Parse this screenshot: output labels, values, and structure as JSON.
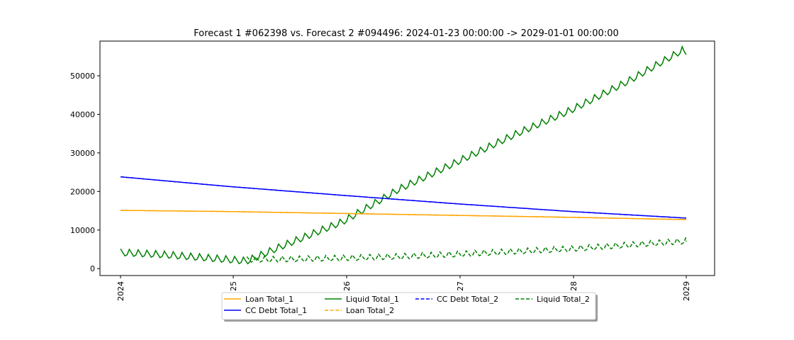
{
  "chart_data": {
    "type": "line",
    "title": "Forecast 1 #062398 vs. Forecast 2 #094496: 2024-01-23 00:00:00 -> 2029-01-01 00:00:00",
    "xlabel": "",
    "ylabel": "",
    "x_ticks": [
      "2024",
      "25",
      "26",
      "27",
      "28",
      "2029"
    ],
    "x_range": [
      "2024-01-23",
      "2029-01-01"
    ],
    "ylim": [
      -1800,
      59000
    ],
    "y_ticks": [
      0,
      10000,
      20000,
      30000,
      40000,
      50000
    ],
    "grid": false,
    "legend_position": "bottom-center",
    "series": [
      {
        "name": "Loan Total_1",
        "color": "#ffa500",
        "style": "solid",
        "x": [
          "2024-01-23",
          "2025-01-01",
          "2026-01-01",
          "2027-01-01",
          "2028-01-01",
          "2029-01-01"
        ],
        "values": [
          15100,
          14800,
          14300,
          13800,
          13300,
          12700
        ]
      },
      {
        "name": "CC Debt Total_1",
        "color": "#0000ff",
        "style": "solid",
        "x": [
          "2024-01-23",
          "2025-01-01",
          "2026-01-01",
          "2027-01-01",
          "2028-01-01",
          "2029-01-01"
        ],
        "values": [
          23800,
          21300,
          19000,
          16800,
          14800,
          13100
        ]
      },
      {
        "name": "Liquid Total_1",
        "color": "#008000",
        "style": "solid",
        "x": [
          "2024-01-23",
          "2024-06-01",
          "2025-01-01",
          "2025-03-01",
          "2025-07-01",
          "2026-01-01",
          "2026-07-01",
          "2027-01-01",
          "2027-07-01",
          "2028-01-01",
          "2028-07-01",
          "2028-12-20",
          "2029-01-01"
        ],
        "values": [
          4000,
          3500,
          2200,
          1800,
          6000,
          12000,
          20500,
          27500,
          34500,
          41000,
          48500,
          56500,
          55500
        ]
      },
      {
        "name": "Loan Total_2",
        "color": "#ffa500",
        "style": "dashed",
        "x": [
          "2024-01-23",
          "2025-01-01",
          "2026-01-01",
          "2027-01-01",
          "2028-01-01",
          "2029-01-01"
        ],
        "values": [
          15100,
          14800,
          14300,
          13800,
          13300,
          12700
        ]
      },
      {
        "name": "CC Debt Total_2",
        "color": "#0000ff",
        "style": "dashed",
        "x": [
          "2024-01-23",
          "2025-01-01",
          "2026-01-01",
          "2027-01-01",
          "2028-01-01",
          "2029-01-01"
        ],
        "values": [
          23800,
          21300,
          19000,
          16800,
          14800,
          13100
        ]
      },
      {
        "name": "Liquid Total_2",
        "color": "#008000",
        "style": "dashed",
        "x": [
          "2025-03-01",
          "2025-07-01",
          "2026-01-01",
          "2026-07-01",
          "2027-01-01",
          "2027-07-01",
          "2028-01-01",
          "2028-07-01",
          "2029-01-01"
        ],
        "values": [
          2200,
          2300,
          2600,
          3000,
          3600,
          4300,
          5000,
          6000,
          7000
        ]
      }
    ]
  }
}
